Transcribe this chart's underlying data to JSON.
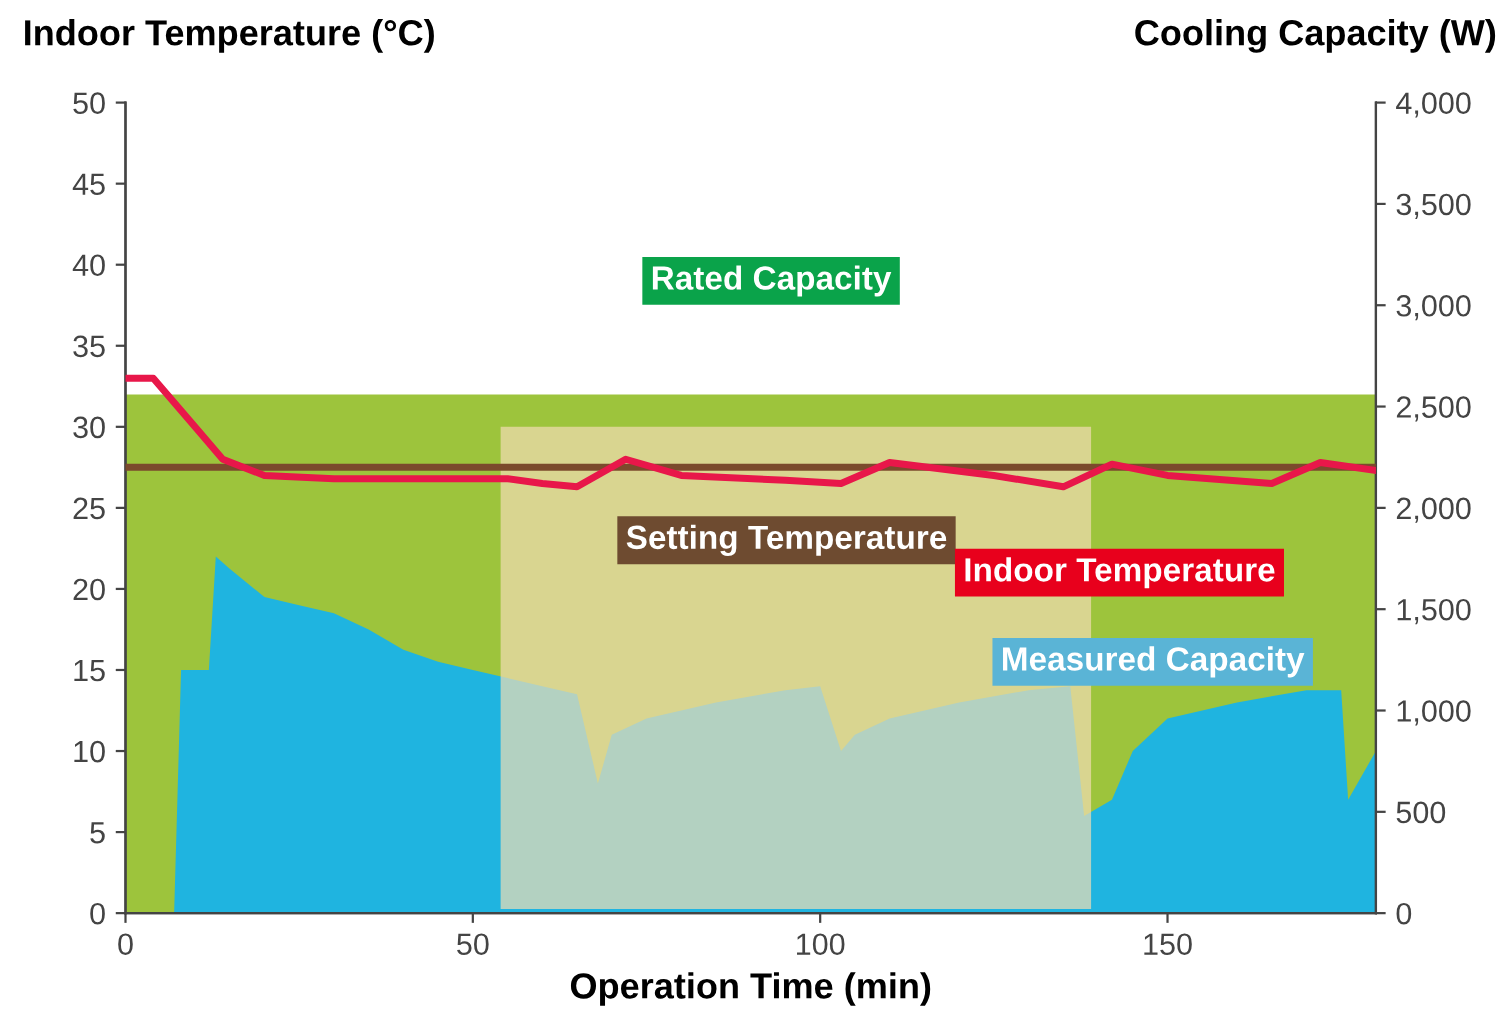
{
  "chart_data": {
    "type": "line",
    "xlabel": "Operation Time (min)",
    "ylabel": "Indoor Temperature (°C)",
    "y2label": "Cooling Capacity (W)",
    "xlim": [
      0,
      180
    ],
    "xticks": [
      0,
      50,
      100,
      150
    ],
    "ylim": [
      0,
      50
    ],
    "yticks": [
      0,
      5,
      10,
      15,
      20,
      25,
      30,
      35,
      40,
      45,
      50
    ],
    "y2lim": [
      0,
      4000
    ],
    "y2ticks": [
      0,
      500,
      {
        "value": 1000,
        "label": "1,000"
      },
      {
        "value": 1500,
        "label": "1,500"
      },
      {
        "value": 2000,
        "label": "2,000"
      },
      {
        "value": 2500,
        "label": "2,500"
      },
      {
        "value": 3000,
        "label": "3,000"
      },
      {
        "value": 3500,
        "label": "3,500"
      },
      {
        "value": 4000,
        "label": "4,000"
      }
    ],
    "legend": false,
    "bands": [
      {
        "axis": "x",
        "from": 54,
        "to": 139,
        "color": "#f2ddb4"
      }
    ],
    "series": [
      {
        "name": "Rated Capacity",
        "type": "area",
        "axis": "y2",
        "color": "#9dc43c",
        "x": [
          0,
          180
        ],
        "values": [
          2560,
          2560
        ]
      },
      {
        "name": "Measured Capacity",
        "type": "area",
        "axis": "y2",
        "color": "#1fb4e0",
        "x": [
          0,
          7,
          8,
          12,
          13,
          15,
          20,
          25,
          30,
          35,
          40,
          45,
          50,
          55,
          60,
          65,
          68,
          70,
          75,
          85,
          95,
          100,
          103,
          105,
          110,
          120,
          130,
          136,
          138,
          142,
          145,
          150,
          160,
          170,
          175,
          176,
          180
        ],
        "values": [
          0,
          0,
          1200,
          1200,
          1760,
          1700,
          1560,
          1520,
          1480,
          1400,
          1300,
          1240,
          1200,
          1160,
          1120,
          1080,
          640,
          880,
          960,
          1040,
          1100,
          1120,
          800,
          880,
          960,
          1040,
          1100,
          1120,
          480,
          560,
          800,
          960,
          1040,
          1100,
          1100,
          560,
          800
        ]
      },
      {
        "name": "Setting Temperature",
        "color": "#7b4a2c",
        "x": [
          0,
          180
        ],
        "values": [
          27.5,
          27.5
        ]
      },
      {
        "name": "Indoor Temperature",
        "color": "#e8174a",
        "x": [
          0,
          4,
          10,
          14,
          20,
          30,
          55,
          60,
          65,
          72,
          80,
          95,
          103,
          110,
          125,
          135,
          142,
          150,
          165,
          172,
          180
        ],
        "values": [
          33,
          33,
          30,
          28,
          27,
          26.8,
          26.8,
          26.5,
          26.3,
          28,
          27,
          26.7,
          26.5,
          27.8,
          27,
          26.3,
          27.7,
          27,
          26.5,
          27.8,
          27.3
        ]
      }
    ]
  }
}
